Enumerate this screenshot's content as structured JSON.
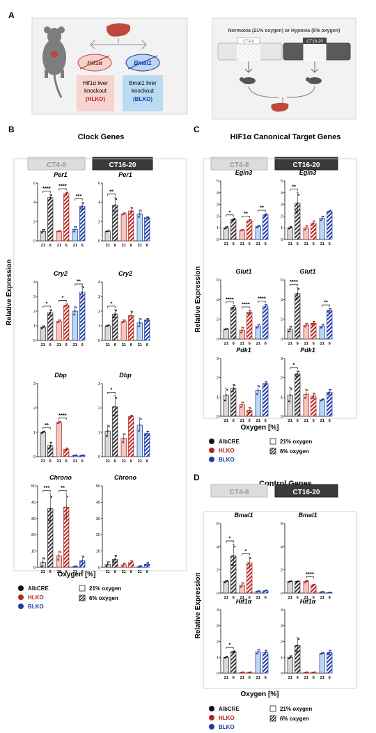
{
  "panel_labels": {
    "a": "A",
    "b": "B",
    "c": "C",
    "d": "D"
  },
  "panel_a": {
    "left": {
      "hif1a": "Hif1α",
      "bmal1": "Bmal1",
      "hlko_lines": [
        "Hif1α liver",
        "knockout",
        "(HLKO)"
      ],
      "blko_lines": [
        "Bmal1 liver",
        "knockout",
        "(BLKO)"
      ]
    },
    "right": {
      "title": "Normoxia (21% oxygen) or Hypoxia (6% oxygen)",
      "ct_a": "CT4-8",
      "ct_b": "CT16-20"
    }
  },
  "panel_b": {
    "title": "Clock Genes",
    "col_headers": [
      "CT4-8",
      "CT16-20"
    ],
    "ylabel": "Relative Expression",
    "xlabel": "Oxygen [%]"
  },
  "panel_c": {
    "title": "HIF1α Canonical Target Genes",
    "col_headers": [
      "CT4-8",
      "CT16-20"
    ],
    "ylabel": "Relative Expression",
    "xlabel": "Oxygen [%]"
  },
  "panel_d": {
    "title": "Control Genes",
    "col_headers": [
      "CT4-8",
      "CT16-20"
    ],
    "ylabel": "Relative Expression",
    "xlabel": "Oxygen [%]"
  },
  "legend": {
    "genotypes": [
      {
        "name": "AlbCRE",
        "color": "#111111"
      },
      {
        "name": "HLKO",
        "color": "#b3261e"
      },
      {
        "name": "BLKO",
        "color": "#1f3aa6"
      }
    ],
    "oxygen": [
      {
        "name": "21% oxygen",
        "pattern": "open"
      },
      {
        "name": "6% oxygen",
        "pattern": "hatched"
      }
    ]
  },
  "colors": {
    "albcre_21": "#d8d8d8",
    "albcre_6": "#333333",
    "hlko_21": "#f3c6c0",
    "hlko_6": "#b3261e",
    "blko_21": "#bcd7f2",
    "blko_6": "#1f3aa6",
    "ct_a_fill": "#dddddd",
    "ct_b_fill": "#3a3a3a"
  },
  "chart_data": [
    {
      "type": "bar",
      "panel": "B",
      "gene": "Per1",
      "time": "CT4-8",
      "ylim": [
        0,
        6
      ],
      "yticks": [
        "0",
        "2",
        "4",
        "6"
      ],
      "categories": [
        "21",
        "6",
        "21",
        "6",
        "21",
        "6"
      ],
      "groups": [
        "AlbCRE",
        "HLKO",
        "BLKO"
      ],
      "values": [
        1.0,
        4.5,
        1.0,
        4.9,
        1.2,
        3.6
      ],
      "errors": [
        0.2,
        0.3,
        0.05,
        0.15,
        0.3,
        0.4
      ],
      "annotations": [
        "****",
        "****",
        "***"
      ]
    },
    {
      "type": "bar",
      "panel": "B",
      "gene": "Per1",
      "time": "CT16-20",
      "ylim": [
        0,
        6
      ],
      "yticks": [
        "0",
        "2",
        "4",
        "6"
      ],
      "categories": [
        "21",
        "6",
        "21",
        "6",
        "21",
        "6"
      ],
      "groups": [
        "AlbCRE",
        "HLKO",
        "BLKO"
      ],
      "values": [
        1.0,
        3.7,
        2.8,
        3.1,
        2.8,
        2.4
      ],
      "errors": [
        0.05,
        0.8,
        0.1,
        0.4,
        0.4,
        0.1
      ],
      "annotations": [
        "**",
        "",
        ""
      ]
    },
    {
      "type": "bar",
      "panel": "B",
      "gene": "Cry2",
      "time": "CT4-8",
      "ylim": [
        0,
        4
      ],
      "yticks": [
        "0",
        "1",
        "2",
        "3",
        "4"
      ],
      "categories": [
        "21",
        "6",
        "21",
        "6",
        "21",
        "6"
      ],
      "groups": [
        "AlbCRE",
        "HLKO",
        "BLKO"
      ],
      "values": [
        0.9,
        1.9,
        1.3,
        2.4,
        2.0,
        3.3
      ],
      "errors": [
        0.1,
        0.2,
        0.1,
        0.1,
        0.3,
        0.4
      ],
      "annotations": [
        "*",
        "*",
        "**"
      ]
    },
    {
      "type": "bar",
      "panel": "B",
      "gene": "Cry2",
      "time": "CT16-20",
      "ylim": [
        0,
        4
      ],
      "yticks": [
        "0",
        "1",
        "2",
        "3",
        "4"
      ],
      "categories": [
        "21",
        "6",
        "21",
        "6",
        "21",
        "6"
      ],
      "groups": [
        "AlbCRE",
        "HLKO",
        "BLKO"
      ],
      "values": [
        1.0,
        1.8,
        1.3,
        1.7,
        1.2,
        1.4
      ],
      "errors": [
        0.05,
        0.3,
        0.1,
        0.3,
        0.3,
        0.1
      ],
      "annotations": [
        "*",
        "",
        ""
      ]
    },
    {
      "type": "bar",
      "panel": "B",
      "gene": "Dbp",
      "time": "CT4-8",
      "ylim": [
        0,
        3
      ],
      "yticks": [
        "0",
        "1",
        "2",
        "3"
      ],
      "categories": [
        "21",
        "6",
        "21",
        "6",
        "21",
        "6"
      ],
      "groups": [
        "AlbCRE",
        "HLKO",
        "BLKO"
      ],
      "values": [
        1.0,
        0.45,
        1.4,
        0.3,
        0.05,
        0.05
      ],
      "errors": [
        0.05,
        0.15,
        0.05,
        0.05,
        0.02,
        0.02
      ],
      "annotations": [
        "**",
        "****",
        ""
      ]
    },
    {
      "type": "bar",
      "panel": "B",
      "gene": "Dbp",
      "time": "CT16-20",
      "ylim": [
        0,
        3
      ],
      "yticks": [
        "0",
        "1",
        "2",
        "3"
      ],
      "categories": [
        "21",
        "6",
        "21",
        "6",
        "21",
        "6"
      ],
      "groups": [
        "AlbCRE",
        "HLKO",
        "BLKO"
      ],
      "values": [
        1.05,
        2.05,
        0.75,
        1.65,
        1.3,
        0.95
      ],
      "errors": [
        0.25,
        0.45,
        0.2,
        0.05,
        0.3,
        0.1
      ],
      "annotations": [
        "*",
        "",
        ""
      ]
    },
    {
      "type": "bar",
      "panel": "B",
      "gene": "Chrono",
      "time": "CT4-8",
      "ylim": [
        0,
        50
      ],
      "yticks": [
        "0",
        "10",
        "20",
        "30",
        "40",
        "50"
      ],
      "categories": [
        "21",
        "6",
        "21",
        "6",
        "21",
        "6"
      ],
      "groups": [
        "AlbCRE",
        "HLKO",
        "BLKO"
      ],
      "values": [
        3.0,
        36.0,
        7.0,
        37.0,
        0.5,
        4.0
      ],
      "errors": [
        3.0,
        9.0,
        3.0,
        8.0,
        0.3,
        3.0
      ],
      "annotations": [
        "***",
        "**",
        ""
      ]
    },
    {
      "type": "bar",
      "panel": "B",
      "gene": "Chrono",
      "time": "CT16-20",
      "ylim": [
        0,
        50
      ],
      "yticks": [
        "0",
        "10",
        "20",
        "30",
        "40",
        "50"
      ],
      "categories": [
        "21",
        "6",
        "21",
        "6",
        "21",
        "6"
      ],
      "groups": [
        "AlbCRE",
        "HLKO",
        "BLKO"
      ],
      "values": [
        2.0,
        5.0,
        1.5,
        3.0,
        0.5,
        2.0
      ],
      "errors": [
        1.5,
        2.5,
        1.0,
        1.0,
        0.5,
        1.0
      ],
      "annotations": [
        "",
        "",
        ""
      ]
    },
    {
      "type": "bar",
      "panel": "C",
      "gene": "Egln3",
      "time": "CT4-8",
      "ylim": [
        0,
        5
      ],
      "yticks": [
        "0",
        "1",
        "2",
        "3",
        "4",
        "5"
      ],
      "categories": [
        "21",
        "6",
        "21",
        "6",
        "21",
        "6"
      ],
      "groups": [
        "AlbCRE",
        "HLKO",
        "BLKO"
      ],
      "values": [
        1.0,
        1.7,
        0.8,
        1.6,
        1.1,
        2.1
      ],
      "errors": [
        0.1,
        0.1,
        0.05,
        0.1,
        0.1,
        0.1
      ],
      "annotations": [
        "*",
        "**",
        "**"
      ]
    },
    {
      "type": "bar",
      "panel": "C",
      "gene": "Egln3",
      "time": "CT16-20",
      "ylim": [
        0,
        5
      ],
      "yticks": [
        "0",
        "1",
        "2",
        "3",
        "4",
        "5"
      ],
      "categories": [
        "21",
        "6",
        "21",
        "6",
        "21",
        "6"
      ],
      "groups": [
        "AlbCRE",
        "HLKO",
        "BLKO"
      ],
      "values": [
        1.0,
        3.1,
        1.0,
        1.4,
        1.8,
        2.4
      ],
      "errors": [
        0.1,
        0.9,
        0.2,
        0.2,
        0.2,
        0.1
      ],
      "annotations": [
        "**",
        "",
        ""
      ]
    },
    {
      "type": "bar",
      "panel": "C",
      "gene": "Glut1",
      "time": "CT4-8",
      "ylim": [
        0,
        6
      ],
      "yticks": [
        "0",
        "2",
        "4",
        "6"
      ],
      "categories": [
        "21",
        "6",
        "21",
        "6",
        "21",
        "6"
      ],
      "groups": [
        "AlbCRE",
        "HLKO",
        "BLKO"
      ],
      "values": [
        1.0,
        3.2,
        0.9,
        2.7,
        1.3,
        3.3
      ],
      "errors": [
        0.05,
        0.2,
        0.3,
        0.2,
        0.2,
        0.2
      ],
      "annotations": [
        "****",
        "****",
        "****"
      ]
    },
    {
      "type": "bar",
      "panel": "C",
      "gene": "Glut1",
      "time": "CT16-20",
      "ylim": [
        0,
        6
      ],
      "yticks": [
        "0",
        "2",
        "4",
        "6"
      ],
      "categories": [
        "21",
        "6",
        "21",
        "6",
        "21",
        "6"
      ],
      "groups": [
        "AlbCRE",
        "HLKO",
        "BLKO"
      ],
      "values": [
        1.0,
        4.6,
        1.4,
        1.6,
        1.3,
        2.9
      ],
      "errors": [
        0.3,
        0.6,
        0.2,
        0.2,
        0.2,
        0.2
      ],
      "annotations": [
        "****",
        "",
        "**"
      ]
    },
    {
      "type": "bar",
      "panel": "C",
      "gene": "Pdk1",
      "time": "CT4-8",
      "ylim": [
        0,
        3
      ],
      "yticks": [
        "0",
        "1",
        "2",
        "3"
      ],
      "categories": [
        "21",
        "6",
        "21",
        "6",
        "21",
        "6"
      ],
      "groups": [
        "AlbCRE",
        "HLKO",
        "BLKO"
      ],
      "values": [
        1.1,
        1.45,
        0.6,
        0.3,
        1.35,
        1.7
      ],
      "errors": [
        0.35,
        0.2,
        0.15,
        0.15,
        0.25,
        0.1
      ],
      "annotations": [
        "",
        "",
        ""
      ]
    },
    {
      "type": "bar",
      "panel": "C",
      "gene": "Pdk1",
      "time": "CT16-20",
      "ylim": [
        0,
        3
      ],
      "yticks": [
        "0",
        "1",
        "2",
        "3"
      ],
      "categories": [
        "21",
        "6",
        "21",
        "6",
        "21",
        "6"
      ],
      "groups": [
        "AlbCRE",
        "HLKO",
        "BLKO"
      ],
      "values": [
        1.1,
        2.2,
        1.15,
        1.05,
        0.85,
        1.25
      ],
      "errors": [
        0.4,
        0.15,
        0.25,
        0.15,
        0.05,
        0.15
      ],
      "annotations": [
        "*",
        "",
        ""
      ]
    },
    {
      "type": "bar",
      "panel": "D",
      "gene": "Bmal1",
      "time": "CT4-8",
      "ylim": [
        0,
        6
      ],
      "yticks": [
        "0",
        "2",
        "4",
        "6"
      ],
      "categories": [
        "21",
        "6",
        "21",
        "6",
        "21",
        "6"
      ],
      "groups": [
        "AlbCRE",
        "HLKO",
        "BLKO"
      ],
      "values": [
        1.0,
        3.2,
        0.7,
        2.6,
        0.15,
        0.2
      ],
      "errors": [
        0.1,
        1.0,
        0.2,
        0.5,
        0.05,
        0.05
      ],
      "annotations": [
        "*",
        "*",
        ""
      ]
    },
    {
      "type": "bar",
      "panel": "D",
      "gene": "Bmal1",
      "time": "CT16-20",
      "ylim": [
        0,
        6
      ],
      "yticks": [
        "0",
        "2",
        "4",
        "6"
      ],
      "categories": [
        "21",
        "6",
        "21",
        "6",
        "21",
        "6"
      ],
      "groups": [
        "AlbCRE",
        "HLKO",
        "BLKO"
      ],
      "values": [
        1.0,
        1.0,
        1.0,
        0.7,
        0.1,
        0.05
      ],
      "errors": [
        0.05,
        0.05,
        0.1,
        0.05,
        0.02,
        0.02
      ],
      "annotations": [
        "",
        "****",
        ""
      ]
    },
    {
      "type": "bar",
      "panel": "D",
      "gene": "Hif1α",
      "time": "CT4-8",
      "ylim": [
        0,
        4
      ],
      "yticks": [
        "0",
        "1",
        "2",
        "3",
        "4"
      ],
      "categories": [
        "21",
        "6",
        "21",
        "6",
        "21",
        "6"
      ],
      "groups": [
        "AlbCRE",
        "HLKO",
        "BLKO"
      ],
      "values": [
        1.0,
        1.35,
        0.05,
        0.05,
        1.35,
        1.3
      ],
      "errors": [
        0.05,
        0.05,
        0.02,
        0.02,
        0.15,
        0.15
      ],
      "annotations": [
        "*",
        "",
        ""
      ]
    },
    {
      "type": "bar",
      "panel": "D",
      "gene": "Hif1α",
      "time": "CT16-20",
      "ylim": [
        0,
        4
      ],
      "yticks": [
        "0",
        "1",
        "2",
        "3",
        "4"
      ],
      "categories": [
        "21",
        "6",
        "21",
        "6",
        "21",
        "6"
      ],
      "groups": [
        "AlbCRE",
        "HLKO",
        "BLKO"
      ],
      "values": [
        1.0,
        1.75,
        0.05,
        0.05,
        1.25,
        1.3
      ],
      "errors": [
        0.1,
        0.5,
        0.02,
        0.02,
        0.05,
        0.15
      ],
      "annotations": [
        "",
        "",
        ""
      ]
    }
  ]
}
